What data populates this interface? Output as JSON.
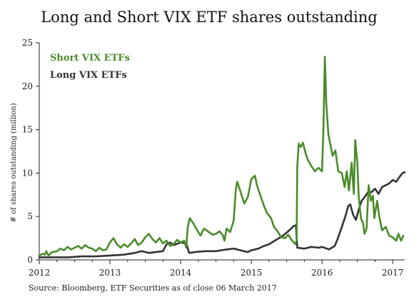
{
  "chart_data": {
    "type": "line",
    "title": "Long and Short VIX ETF shares outstanding",
    "ylabel": "# of shares outstanding (million)",
    "xlabel": "",
    "source": "Source: Bloomberg, ETF Securities as of close 06 March 2017",
    "xlim": [
      2012,
      2017.17
    ],
    "ylim": [
      0,
      25
    ],
    "x_ticks": [
      "2012",
      "2013",
      "2014",
      "2015",
      "2016",
      "2017"
    ],
    "y_ticks": [
      "0",
      "5",
      "10",
      "15",
      "20",
      "25"
    ],
    "legend_position": "top-left",
    "grid": false,
    "series": [
      {
        "name": "Short VIX ETFs",
        "color": "#4a8a2a",
        "points": [
          [
            2012.0,
            0.5
          ],
          [
            2012.05,
            0.7
          ],
          [
            2012.08,
            0.6
          ],
          [
            2012.1,
            1.0
          ],
          [
            2012.13,
            0.5
          ],
          [
            2012.18,
            0.9
          ],
          [
            2012.25,
            1.0
          ],
          [
            2012.3,
            1.3
          ],
          [
            2012.35,
            1.1
          ],
          [
            2012.4,
            1.5
          ],
          [
            2012.45,
            1.2
          ],
          [
            2012.5,
            1.4
          ],
          [
            2012.55,
            1.6
          ],
          [
            2012.6,
            1.3
          ],
          [
            2012.65,
            1.7
          ],
          [
            2012.7,
            1.4
          ],
          [
            2012.75,
            1.3
          ],
          [
            2012.8,
            1.0
          ],
          [
            2012.85,
            1.4
          ],
          [
            2012.9,
            1.1
          ],
          [
            2012.95,
            1.2
          ],
          [
            2013.0,
            2.0
          ],
          [
            2013.05,
            2.5
          ],
          [
            2013.1,
            1.8
          ],
          [
            2013.15,
            1.4
          ],
          [
            2013.2,
            1.8
          ],
          [
            2013.25,
            1.5
          ],
          [
            2013.3,
            1.9
          ],
          [
            2013.35,
            2.4
          ],
          [
            2013.4,
            1.7
          ],
          [
            2013.45,
            2.0
          ],
          [
            2013.5,
            2.6
          ],
          [
            2013.55,
            3.0
          ],
          [
            2013.6,
            2.4
          ],
          [
            2013.65,
            2.0
          ],
          [
            2013.7,
            2.5
          ],
          [
            2013.75,
            1.9
          ],
          [
            2013.8,
            2.2
          ],
          [
            2013.85,
            1.6
          ],
          [
            2013.9,
            1.8
          ],
          [
            2013.95,
            2.3
          ],
          [
            2014.0,
            2.0
          ],
          [
            2014.05,
            2.2
          ],
          [
            2014.08,
            1.4
          ],
          [
            2014.1,
            3.8
          ],
          [
            2014.13,
            4.8
          ],
          [
            2014.18,
            4.2
          ],
          [
            2014.22,
            3.6
          ],
          [
            2014.28,
            2.8
          ],
          [
            2014.33,
            3.6
          ],
          [
            2014.4,
            3.2
          ],
          [
            2014.45,
            2.9
          ],
          [
            2014.5,
            3.0
          ],
          [
            2014.55,
            3.3
          ],
          [
            2014.6,
            2.8
          ],
          [
            2014.62,
            2.2
          ],
          [
            2014.65,
            3.6
          ],
          [
            2014.7,
            3.2
          ],
          [
            2014.75,
            4.5
          ],
          [
            2014.78,
            8.0
          ],
          [
            2014.8,
            9.0
          ],
          [
            2014.85,
            7.8
          ],
          [
            2014.9,
            6.5
          ],
          [
            2014.95,
            7.2
          ],
          [
            2015.0,
            9.3
          ],
          [
            2015.05,
            9.7
          ],
          [
            2015.08,
            8.6
          ],
          [
            2015.12,
            7.6
          ],
          [
            2015.18,
            6.2
          ],
          [
            2015.22,
            5.4
          ],
          [
            2015.28,
            4.8
          ],
          [
            2015.32,
            3.8
          ],
          [
            2015.38,
            3.2
          ],
          [
            2015.42,
            2.6
          ],
          [
            2015.48,
            2.5
          ],
          [
            2015.52,
            2.9
          ],
          [
            2015.57,
            2.3
          ],
          [
            2015.62,
            1.8
          ],
          [
            2015.64,
            2.2
          ],
          [
            2015.65,
            10.8
          ],
          [
            2015.67,
            13.4
          ],
          [
            2015.7,
            13.0
          ],
          [
            2015.73,
            13.5
          ],
          [
            2015.77,
            12.2
          ],
          [
            2015.8,
            11.5
          ],
          [
            2015.85,
            10.8
          ],
          [
            2015.9,
            10.2
          ],
          [
            2015.95,
            10.6
          ],
          [
            2016.0,
            10.2
          ],
          [
            2016.02,
            15.0
          ],
          [
            2016.04,
            23.4
          ],
          [
            2016.06,
            18.0
          ],
          [
            2016.09,
            14.5
          ],
          [
            2016.12,
            13.2
          ],
          [
            2016.15,
            12.0
          ],
          [
            2016.19,
            12.6
          ],
          [
            2016.23,
            10.2
          ],
          [
            2016.28,
            10.0
          ],
          [
            2016.32,
            8.4
          ],
          [
            2016.35,
            10.2
          ],
          [
            2016.38,
            8.0
          ],
          [
            2016.42,
            11.2
          ],
          [
            2016.45,
            7.6
          ],
          [
            2016.47,
            13.8
          ],
          [
            2016.5,
            11.2
          ],
          [
            2016.52,
            7.2
          ],
          [
            2016.55,
            4.8
          ],
          [
            2016.58,
            4.2
          ],
          [
            2016.6,
            3.0
          ],
          [
            2016.63,
            3.6
          ],
          [
            2016.66,
            8.6
          ],
          [
            2016.69,
            6.8
          ],
          [
            2016.72,
            7.4
          ],
          [
            2016.74,
            4.8
          ],
          [
            2016.78,
            6.8
          ],
          [
            2016.81,
            5.0
          ],
          [
            2016.85,
            3.4
          ],
          [
            2016.9,
            3.8
          ],
          [
            2016.95,
            2.8
          ],
          [
            2017.0,
            2.6
          ],
          [
            2017.05,
            2.2
          ],
          [
            2017.08,
            3.0
          ],
          [
            2017.12,
            2.2
          ],
          [
            2017.15,
            2.8
          ]
        ]
      },
      {
        "name": "Long VIX ETFs",
        "color": "#333333",
        "points": [
          [
            2012.0,
            0.3
          ],
          [
            2012.2,
            0.3
          ],
          [
            2012.4,
            0.3
          ],
          [
            2012.6,
            0.4
          ],
          [
            2012.8,
            0.4
          ],
          [
            2013.0,
            0.5
          ],
          [
            2013.2,
            0.6
          ],
          [
            2013.35,
            0.8
          ],
          [
            2013.45,
            1.0
          ],
          [
            2013.55,
            0.8
          ],
          [
            2013.65,
            0.9
          ],
          [
            2013.75,
            1.0
          ],
          [
            2013.8,
            1.8
          ],
          [
            2013.85,
            2.0
          ],
          [
            2013.9,
            1.7
          ],
          [
            2014.0,
            2.0
          ],
          [
            2014.08,
            1.9
          ],
          [
            2014.12,
            0.8
          ],
          [
            2014.2,
            0.9
          ],
          [
            2014.35,
            1.0
          ],
          [
            2014.5,
            1.0
          ],
          [
            2014.65,
            1.2
          ],
          [
            2014.75,
            1.3
          ],
          [
            2014.85,
            1.1
          ],
          [
            2014.95,
            0.9
          ],
          [
            2015.0,
            1.1
          ],
          [
            2015.1,
            1.3
          ],
          [
            2015.18,
            1.6
          ],
          [
            2015.25,
            1.8
          ],
          [
            2015.35,
            2.3
          ],
          [
            2015.45,
            2.8
          ],
          [
            2015.55,
            3.5
          ],
          [
            2015.6,
            3.9
          ],
          [
            2015.63,
            4.0
          ],
          [
            2015.65,
            1.4
          ],
          [
            2015.75,
            1.3
          ],
          [
            2015.85,
            1.5
          ],
          [
            2015.95,
            1.4
          ],
          [
            2016.0,
            1.5
          ],
          [
            2016.1,
            1.2
          ],
          [
            2016.18,
            1.6
          ],
          [
            2016.22,
            2.4
          ],
          [
            2016.28,
            3.8
          ],
          [
            2016.33,
            5.0
          ],
          [
            2016.37,
            6.2
          ],
          [
            2016.4,
            6.4
          ],
          [
            2016.44,
            5.2
          ],
          [
            2016.48,
            4.6
          ],
          [
            2016.52,
            5.8
          ],
          [
            2016.56,
            6.8
          ],
          [
            2016.6,
            7.2
          ],
          [
            2016.65,
            7.8
          ],
          [
            2016.7,
            7.8
          ],
          [
            2016.75,
            8.2
          ],
          [
            2016.8,
            7.6
          ],
          [
            2016.85,
            8.4
          ],
          [
            2016.9,
            8.6
          ],
          [
            2016.95,
            8.8
          ],
          [
            2017.0,
            9.2
          ],
          [
            2017.05,
            9.0
          ],
          [
            2017.1,
            9.6
          ],
          [
            2017.14,
            10.0
          ],
          [
            2017.17,
            10.1
          ]
        ]
      }
    ]
  }
}
